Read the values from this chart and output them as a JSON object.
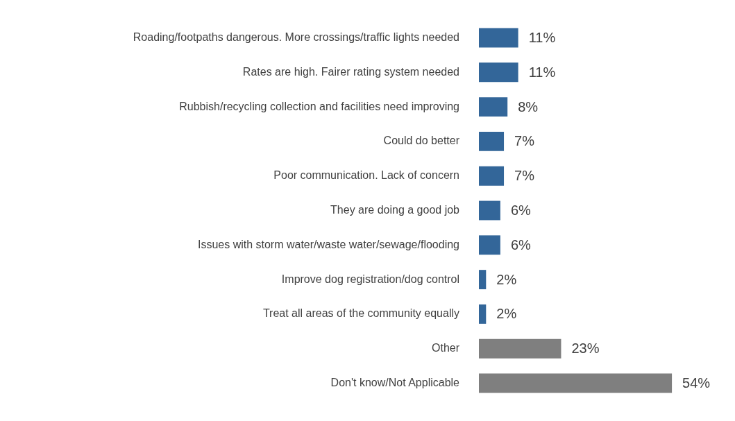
{
  "chart_data": {
    "type": "bar",
    "orientation": "horizontal",
    "categories": [
      "Roading/footpaths dangerous. More crossings/traffic lights needed",
      "Rates are high. Fairer rating system needed",
      "Rubbish/recycling collection and facilities need improving",
      "Could do better",
      "Poor communication. Lack of concern",
      "They are doing a good job",
      "Issues with storm water/waste water/sewage/flooding",
      "Improve dog registration/dog control",
      "Treat all areas of the community equally",
      "Other",
      "Don't know/Not Applicable"
    ],
    "values": [
      11,
      11,
      8,
      7,
      7,
      6,
      6,
      2,
      2,
      23,
      54
    ],
    "colors": [
      "#336699",
      "#336699",
      "#336699",
      "#336699",
      "#336699",
      "#336699",
      "#336699",
      "#336699",
      "#336699",
      "#7f7f7f",
      "#7f7f7f"
    ],
    "value_labels": [
      "11%",
      "11%",
      "8%",
      "7%",
      "7%",
      "6%",
      "6%",
      "2%",
      "2%",
      "23%",
      "54%"
    ],
    "legend": false,
    "tick_labels": "y"
  }
}
